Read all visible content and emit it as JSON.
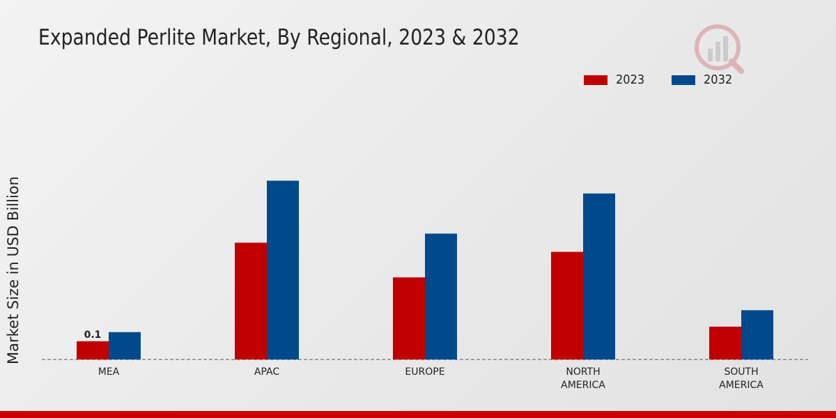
{
  "chart_data": {
    "type": "bar",
    "title": "Expanded Perlite Market, By Regional, 2023 & 2032",
    "xlabel": "",
    "ylabel": "Market Size in USD Billion",
    "categories": [
      [
        "MEA"
      ],
      [
        "APAC"
      ],
      [
        "EUROPE"
      ],
      [
        "NORTH",
        "AMERICA"
      ],
      [
        "SOUTH",
        "AMERICA"
      ]
    ],
    "series": [
      {
        "name": "2023",
        "color": "#c00000",
        "values": [
          0.1,
          0.64,
          0.45,
          0.59,
          0.18
        ]
      },
      {
        "name": "2032",
        "color": "#004a8c",
        "values": [
          0.15,
          0.98,
          0.69,
          0.91,
          0.27
        ]
      }
    ],
    "data_labels": [
      {
        "series": 0,
        "index": 0,
        "text": "0.1"
      }
    ],
    "ylim": [
      0,
      1.2
    ],
    "grid": false,
    "legend_position": "top-right"
  },
  "branding": {
    "logo_icon": "market-research-logo-icon",
    "accent_color": "#cc0000"
  }
}
